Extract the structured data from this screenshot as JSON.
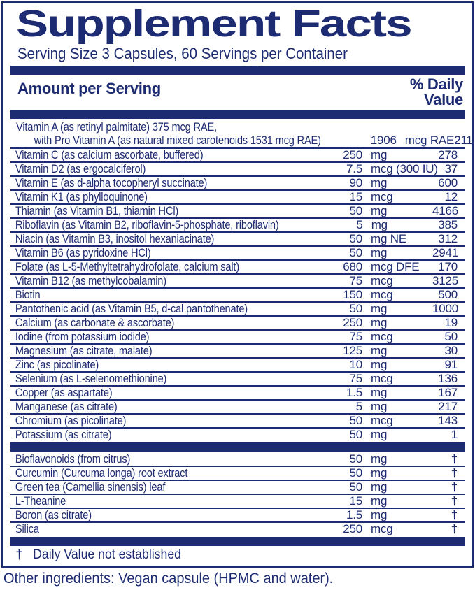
{
  "title": "Supplement Facts",
  "serving_line": "Serving Size 3 Capsules, 60 Servings per Container",
  "header": {
    "left": "Amount per Serving",
    "right_line1": "% Daily",
    "right_line2": "Value"
  },
  "vitamin_a": {
    "line1": "Vitamin A (as retinyl palmitate) 375 mcg RAE,",
    "line2": "with Pro Vitamin A (as natural mixed carotenoids 1531 mcg RAE)",
    "amount": "1906",
    "unit": "mcg RAE",
    "dv": "211"
  },
  "rows_main": [
    {
      "name": "Vitamin C (as calcium ascorbate, buffered)",
      "amount": "250",
      "unit": "mg",
      "dv": "278"
    },
    {
      "name": "Vitamin D2 (as ergocalciferol)",
      "amount": "7.5",
      "unit": "mcg (300 IU)",
      "dv": "37"
    },
    {
      "name": "Vitamin E (as d-alpha tocopheryl succinate)",
      "amount": "90",
      "unit": "mg",
      "dv": "600"
    },
    {
      "name": "Vitamin K1 (as phylloquinone)",
      "amount": "15",
      "unit": "mcg",
      "dv": "12"
    },
    {
      "name": "Thiamin (as Vitamin B1, thiamin HCl)",
      "amount": "50",
      "unit": "mg",
      "dv": "4166"
    },
    {
      "name": "Riboflavin (as Vitamin B2, riboflavin-5-phosphate, riboflavin)",
      "amount": "5",
      "unit": "mg",
      "dv": "385"
    },
    {
      "name": "Niacin (as Vitamin B3, inositol hexaniacinate)",
      "amount": "50",
      "unit": "mg NE",
      "dv": "312"
    },
    {
      "name": "Vitamin B6 (as pyridoxine HCl)",
      "amount": "50",
      "unit": "mg",
      "dv": "2941"
    },
    {
      "name": "Folate (as L-5-Methyltetrahydrofolate, calcium salt)",
      "amount": "680",
      "unit": "mcg DFE",
      "dv": "170"
    },
    {
      "name": "Vitamin B12 (as methylcobalamin)",
      "amount": "75",
      "unit": "mcg",
      "dv": "3125"
    },
    {
      "name": "Biotin",
      "amount": "150",
      "unit": "mcg",
      "dv": "500"
    },
    {
      "name": "Pantothenic acid (as Vitamin B5, d-cal pantothenate)",
      "amount": "50",
      "unit": "mg",
      "dv": "1000"
    },
    {
      "name": "Calcium (as carbonate & ascorbate)",
      "amount": "250",
      "unit": "mg",
      "dv": "19"
    },
    {
      "name": "Iodine (from potassium iodide)",
      "amount": "75",
      "unit": "mcg",
      "dv": "50"
    },
    {
      "name": "Magnesium (as citrate, malate)",
      "amount": "125",
      "unit": "mg",
      "dv": "30"
    },
    {
      "name": "Zinc (as picolinate)",
      "amount": "10",
      "unit": "mg",
      "dv": "91"
    },
    {
      "name": "Selenium (as L-selenomethionine)",
      "amount": "75",
      "unit": "mcg",
      "dv": "136"
    },
    {
      "name": "Copper (as aspartate)",
      "amount": "1.5",
      "unit": "mg",
      "dv": "167"
    },
    {
      "name": "Manganese (as citrate)",
      "amount": "5",
      "unit": "mg",
      "dv": "217"
    },
    {
      "name": "Chromium (as picolinate)",
      "amount": "50",
      "unit": "mcg",
      "dv": "143"
    },
    {
      "name": "Potassium (as citrate)",
      "amount": "50",
      "unit": "mg",
      "dv": "1"
    }
  ],
  "rows_other": [
    {
      "name": "Bioflavonoids (from citrus)",
      "amount": "50",
      "unit": "mg",
      "dv": "†"
    },
    {
      "name": "Curcumin (Curcuma longa) root extract",
      "amount": "50",
      "unit": "mg",
      "dv": "†"
    },
    {
      "name": "Green tea (Camellia sinensis) leaf",
      "amount": "50",
      "unit": "mg",
      "dv": "†"
    },
    {
      "name": "L-Theanine",
      "amount": "15",
      "unit": "mg",
      "dv": "†"
    },
    {
      "name": "Boron (as citrate)",
      "amount": "1.5",
      "unit": "mg",
      "dv": "†"
    },
    {
      "name": "Silica",
      "amount": "250",
      "unit": "mcg",
      "dv": "†"
    }
  ],
  "footnote": {
    "symbol": "†",
    "text": "Daily Value not established"
  },
  "other_ingredients": "Other ingredients: Vegan capsule (HPMC and water).",
  "colors": {
    "navy": "#1d2b72",
    "background": "#ffffff"
  }
}
